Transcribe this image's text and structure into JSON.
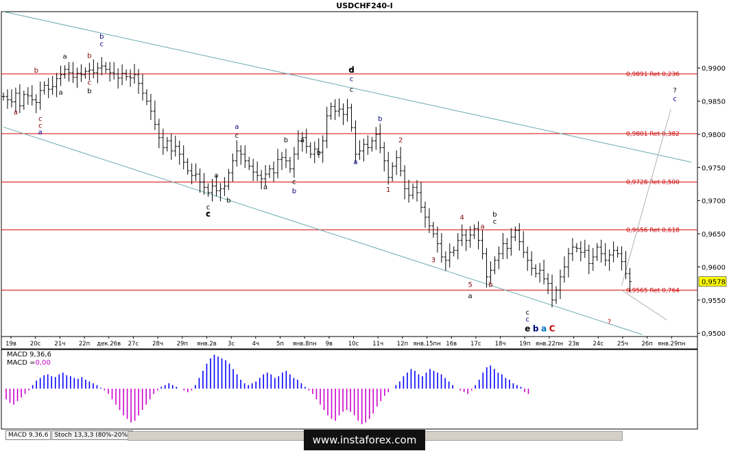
{
  "title": "USDCHF240-I",
  "chart_data": {
    "type": "ohlc",
    "title": "USDCHF240-I",
    "ylim": [
      0.9495,
      0.9985
    ],
    "yticks": [
      "0,9900",
      "0,9850",
      "0,9800",
      "0,9750",
      "0,9700",
      "0,9650",
      "0,9600",
      "0,9550",
      "0,9500"
    ],
    "ytick_values": [
      0.99,
      0.985,
      0.98,
      0.975,
      0.97,
      0.965,
      0.96,
      0.955,
      0.95
    ],
    "xticks": [
      "19в",
      "20с",
      "21ч",
      "22п",
      "дек.26в",
      "27с",
      "28ч",
      "29п",
      "янв.2в",
      "3с",
      "4ч",
      "5п",
      "янв.8пн",
      "9в",
      "10с",
      "11ч",
      "12п",
      "янв.15пн",
      "16в",
      "17с",
      "18ч",
      "19п",
      "янв.22пн",
      "23в",
      "24с",
      "25ч",
      "26п",
      "янв.29пн"
    ],
    "current_price": "0,9578",
    "current_value": 0.9578,
    "fib_levels": [
      {
        "value": 0.9891,
        "label": "0,9891 Ret 0,236"
      },
      {
        "value": 0.9801,
        "label": "0,9801 Ret 0,382"
      },
      {
        "value": 0.9728,
        "label": "0,9728 Ret 0,500"
      },
      {
        "value": 0.9656,
        "label": "0,9656 Ret 0,618"
      },
      {
        "value": 0.9565,
        "label": "0,9565 Ret 0,764"
      }
    ],
    "closes": [
      0.9857,
      0.9852,
      0.9849,
      0.9862,
      0.9843,
      0.986,
      0.9858,
      0.9852,
      0.9848,
      0.9866,
      0.9874,
      0.9868,
      0.9872,
      0.9884,
      0.989,
      0.9898,
      0.9893,
      0.9886,
      0.9892,
      0.989,
      0.9895,
      0.9897,
      0.9893,
      0.99,
      0.9903,
      0.9898,
      0.9893,
      0.9891,
      0.9885,
      0.9892,
      0.9887,
      0.9885,
      0.989,
      0.9877,
      0.9862,
      0.985,
      0.9835,
      0.9815,
      0.9795,
      0.978,
      0.979,
      0.9775,
      0.9782,
      0.977,
      0.9758,
      0.9745,
      0.9738,
      0.974,
      0.9728,
      0.972,
      0.9712,
      0.9722,
      0.9715,
      0.9718,
      0.9722,
      0.9742,
      0.976,
      0.9775,
      0.977,
      0.976,
      0.9752,
      0.9743,
      0.9738,
      0.9733,
      0.974,
      0.9748,
      0.9742,
      0.9762,
      0.9765,
      0.976,
      0.9748,
      0.977,
      0.979,
      0.9795,
      0.9782,
      0.977,
      0.9778,
      0.9773,
      0.979,
      0.9828,
      0.9842,
      0.9835,
      0.9838,
      0.983,
      0.984,
      0.981,
      0.977,
      0.9775,
      0.9785,
      0.978,
      0.979,
      0.98,
      0.978,
      0.976,
      0.9735,
      0.9752,
      0.9765,
      0.9745,
      0.9718,
      0.9708,
      0.972,
      0.9712,
      0.969,
      0.9675,
      0.9662,
      0.965,
      0.9635,
      0.9615,
      0.961,
      0.9622,
      0.9625,
      0.964,
      0.9648,
      0.964,
      0.9648,
      0.9658,
      0.964,
      0.962,
      0.9585,
      0.9595,
      0.961,
      0.962,
      0.9635,
      0.9628,
      0.9645,
      0.9655,
      0.9638,
      0.9622,
      0.961,
      0.9598,
      0.959,
      0.9595,
      0.9582,
      0.9575,
      0.955,
      0.9565,
      0.9585,
      0.96,
      0.962,
      0.963,
      0.9628,
      0.9622,
      0.9625,
      0.9605,
      0.9615,
      0.963,
      0.962,
      0.961,
      0.9618,
      0.9625,
      0.962,
      0.9608,
      0.959,
      0.9578
    ],
    "fans": [
      {
        "name": "upper-channel",
        "from": [
          0,
          0.9985
        ],
        "to": [
          168,
          0.9758
        ]
      },
      {
        "name": "lower-channel",
        "from": [
          0,
          0.9811
        ],
        "to": [
          156,
          0.9498
        ]
      },
      {
        "name": "projection-up",
        "from": [
          151,
          0.9572
        ],
        "to": [
          163,
          0.9838
        ]
      },
      {
        "name": "projection-down",
        "from": [
          151,
          0.9565
        ],
        "to": [
          162,
          0.952
        ]
      }
    ],
    "wave_labels": [
      {
        "t": "a",
        "i": 3,
        "v": 0.983,
        "c": "#800000"
      },
      {
        "t": "b",
        "i": 8,
        "v": 0.9893,
        "c": "#800000"
      },
      {
        "t": "c",
        "i": 9,
        "v": 0.982,
        "c": "#800000"
      },
      {
        "t": "c",
        "i": 9,
        "v": 0.981,
        "c": "#800000"
      },
      {
        "t": "a",
        "i": 9,
        "v": 0.98,
        "c": "#000080"
      },
      {
        "t": "a",
        "i": 15,
        "v": 0.9914,
        "c": "#000"
      },
      {
        "t": "b",
        "i": 21,
        "v": 0.9915,
        "c": "#800000"
      },
      {
        "t": "b",
        "i": 24,
        "v": 0.9944,
        "c": "#000080"
      },
      {
        "t": "c",
        "i": 24,
        "v": 0.9933,
        "c": "#000080"
      },
      {
        "t": "a",
        "i": 14,
        "v": 0.986,
        "c": "#000"
      },
      {
        "t": "c",
        "i": 21,
        "v": 0.9875,
        "c": "#800000"
      },
      {
        "t": "b",
        "i": 21,
        "v": 0.9862,
        "c": "#000"
      },
      {
        "t": "a",
        "i": 52,
        "v": 0.9735,
        "c": "#000"
      },
      {
        "t": "b",
        "i": 55,
        "v": 0.9697,
        "c": "#000"
      },
      {
        "t": "c",
        "i": 50,
        "v": 0.9687,
        "c": "#000"
      },
      {
        "t": "c",
        "i": 50,
        "v": 0.9676,
        "c": "#000"
      },
      {
        "t": "a",
        "i": 57,
        "v": 0.9808,
        "c": "#000080"
      },
      {
        "t": "c",
        "i": 57,
        "v": 0.9795,
        "c": "#000"
      },
      {
        "t": "b",
        "i": 69,
        "v": 0.9788,
        "c": "#000"
      },
      {
        "t": "a",
        "i": 73,
        "v": 0.9788,
        "c": "#000"
      },
      {
        "t": "a",
        "i": 64,
        "v": 0.9717,
        "c": "#000"
      },
      {
        "t": "c",
        "i": 71,
        "v": 0.9725,
        "c": "#000"
      },
      {
        "t": "b",
        "i": 71,
        "v": 0.9711,
        "c": "#000080"
      },
      {
        "t": "b",
        "i": 77,
        "v": 0.9769,
        "c": "#000"
      },
      {
        "t": "d",
        "i": 85,
        "v": 0.9893,
        "c": "#000"
      },
      {
        "t": "c",
        "i": 85,
        "v": 0.988,
        "c": "#000080"
      },
      {
        "t": "c",
        "i": 85,
        "v": 0.9864,
        "c": "#000"
      },
      {
        "t": "a",
        "i": 86,
        "v": 0.9755,
        "c": "#000080"
      },
      {
        "t": "b",
        "i": 92,
        "v": 0.982,
        "c": "#000080"
      },
      {
        "t": "2",
        "i": 97,
        "v": 0.9788,
        "c": "#800000"
      },
      {
        "t": "1",
        "i": 94,
        "v": 0.9713,
        "c": "#800000"
      },
      {
        "t": "3",
        "i": 105,
        "v": 0.9607,
        "c": "#800000"
      },
      {
        "t": "4",
        "i": 112,
        "v": 0.9671,
        "c": "#800000"
      },
      {
        "t": "a",
        "i": 117,
        "v": 0.9658,
        "c": "#800000"
      },
      {
        "t": "b",
        "i": 120,
        "v": 0.9676,
        "c": "#000"
      },
      {
        "t": "c",
        "i": 120,
        "v": 0.9665,
        "c": "#000"
      },
      {
        "t": "5",
        "i": 114,
        "v": 0.957,
        "c": "#800000"
      },
      {
        "t": "a",
        "i": 114,
        "v": 0.9553,
        "c": "#000"
      },
      {
        "t": "b",
        "i": 119,
        "v": 0.957,
        "c": "#800000"
      },
      {
        "t": "c",
        "i": 128,
        "v": 0.9528,
        "c": "#000"
      },
      {
        "t": "c",
        "i": 128,
        "v": 0.9518,
        "c": "#000080"
      },
      {
        "t": "?",
        "i": 148,
        "v": 0.9514,
        "c": "#cc0000"
      },
      {
        "t": "?",
        "i": 164,
        "v": 0.9863,
        "c": "#000"
      },
      {
        "t": "c",
        "i": 164,
        "v": 0.985,
        "c": "#000080"
      }
    ],
    "wave_labels_bold": [
      {
        "t": "d",
        "i": 85,
        "v": 0.9893,
        "c": "#000"
      },
      {
        "t": "c",
        "i": 50,
        "v": 0.9676,
        "c": "#000"
      },
      {
        "t": "e",
        "i": 128,
        "v": 0.9503,
        "c": "#000"
      },
      {
        "t": "b",
        "i": 130,
        "v": 0.9503,
        "c": "#000080"
      },
      {
        "t": "a",
        "i": 132,
        "v": 0.9503,
        "c": "#0070c0"
      },
      {
        "t": "C",
        "i": 134,
        "v": 0.9503,
        "c": "#cc0000"
      }
    ]
  },
  "macd": {
    "label": "MACD 9,36,6",
    "value_prefix": "MACD =",
    "value": "0,00",
    "values": [
      -12,
      -16,
      -18,
      -14,
      -10,
      -6,
      -2,
      4,
      9,
      12,
      15,
      16,
      14,
      13,
      16,
      18,
      15,
      14,
      12,
      11,
      13,
      10,
      8,
      6,
      4,
      1,
      -2,
      -6,
      -12,
      -18,
      -24,
      -30,
      -34,
      -38,
      -36,
      -30,
      -24,
      -18,
      -12,
      -6,
      -2,
      2,
      4,
      6,
      4,
      2,
      0,
      -2,
      -4,
      -2,
      4,
      12,
      20,
      28,
      34,
      38,
      36,
      34,
      32,
      28,
      22,
      16,
      10,
      6,
      4,
      6,
      8,
      12,
      16,
      18,
      16,
      12,
      14,
      18,
      20,
      16,
      12,
      10,
      6,
      2,
      -2,
      -6,
      -12,
      -18,
      -24,
      -30,
      -34,
      -36,
      -30,
      -26,
      -24,
      -26,
      -30,
      -36,
      -40,
      -38,
      -34,
      -28,
      -20,
      -14,
      -8,
      -4,
      0,
      4,
      8,
      14,
      18,
      22,
      20,
      16,
      14,
      18,
      22,
      20,
      18,
      16,
      12,
      8,
      4,
      0,
      -2,
      -4,
      -6,
      -2,
      4,
      10,
      18,
      24,
      26,
      22,
      18,
      16,
      12,
      10,
      6,
      4,
      2,
      -4,
      -6
    ]
  },
  "tabs": [
    "MACD 9,36,6",
    "Stoch 13,3,3 (80%-20%)"
  ],
  "watermark": "www.instaforex.com"
}
